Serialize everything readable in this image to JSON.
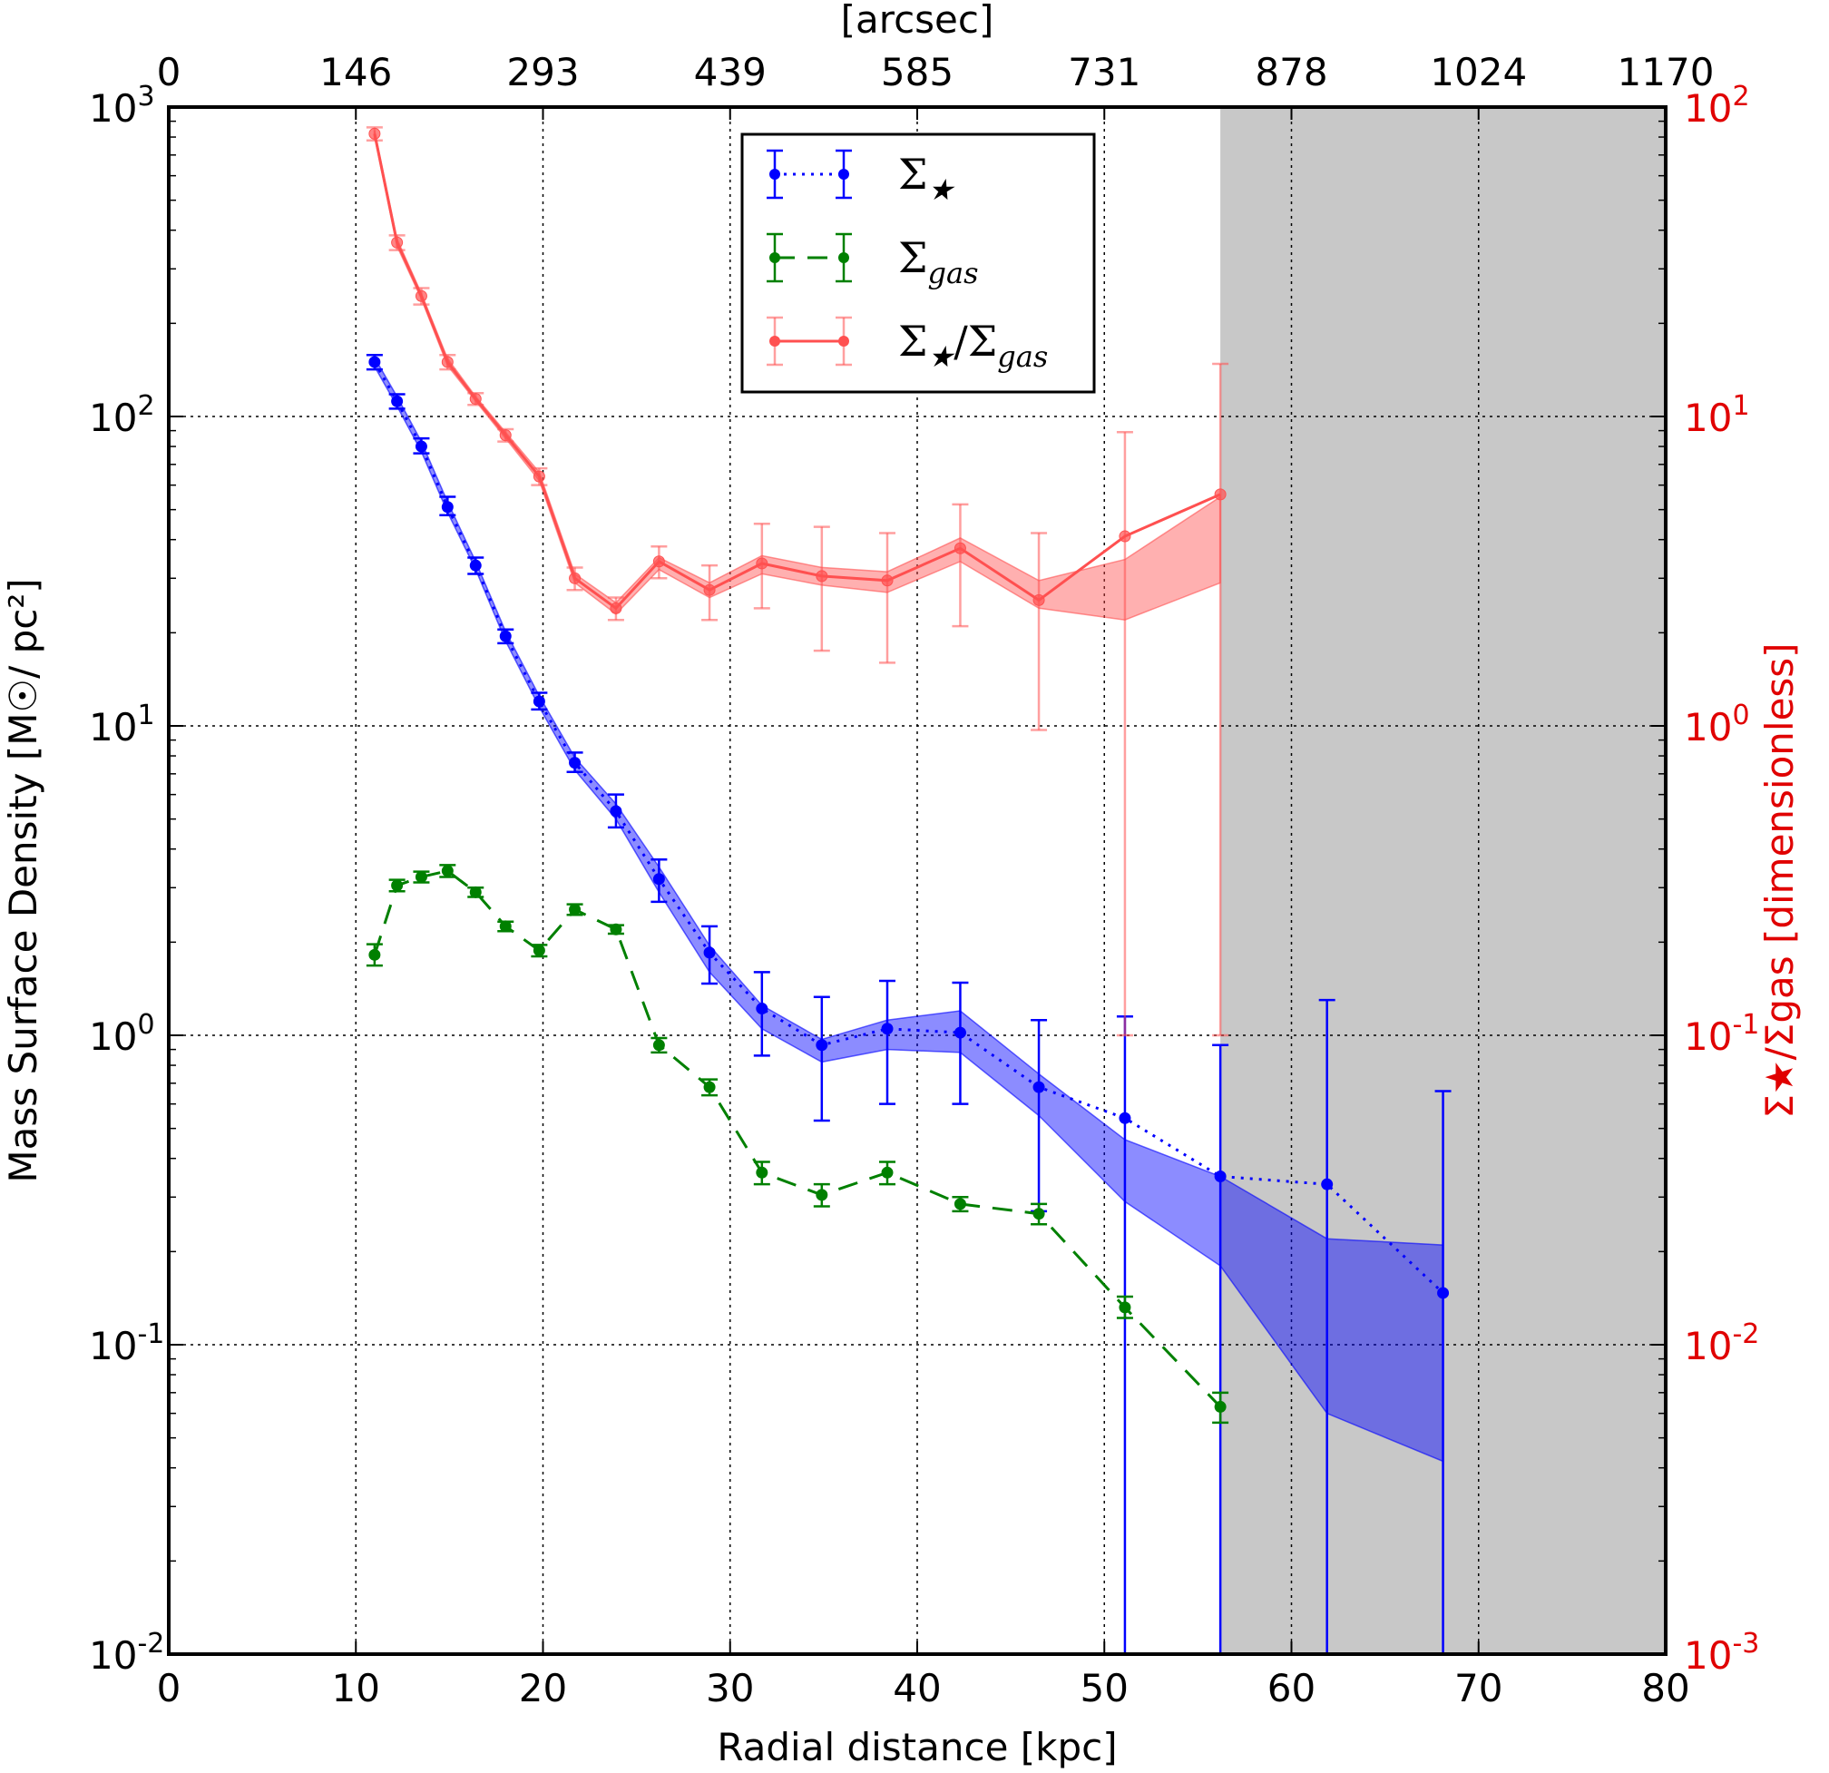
{
  "chart_data": {
    "type": "line",
    "xlabel": "Radial distance [kpc]",
    "ylabel": "Mass Surface Density [M☉/ pc²]",
    "y2label": "Σ★/Σgas [dimensionless]",
    "top_xlabel": "[arcsec]",
    "xlim": [
      0,
      80
    ],
    "ylim": [
      0.01,
      1000
    ],
    "y2lim": [
      0.001,
      100
    ],
    "yscale": "log",
    "y2scale": "log",
    "grid": true,
    "legend_position": "top-center",
    "x_ticks": [
      "0",
      "10",
      "20",
      "30",
      "40",
      "50",
      "60",
      "70",
      "80"
    ],
    "top_x_ticks": [
      "0",
      "146",
      "293",
      "439",
      "585",
      "731",
      "878",
      "1024",
      "1170"
    ],
    "y_ticks": [
      {
        "base": "10",
        "exp": "-2"
      },
      {
        "base": "10",
        "exp": "-1"
      },
      {
        "base": "10",
        "exp": "0"
      },
      {
        "base": "10",
        "exp": "1"
      },
      {
        "base": "10",
        "exp": "2"
      },
      {
        "base": "10",
        "exp": "3"
      }
    ],
    "y2_ticks": [
      {
        "base": "10",
        "exp": "-3"
      },
      {
        "base": "10",
        "exp": "-2"
      },
      {
        "base": "10",
        "exp": "-1"
      },
      {
        "base": "10",
        "exp": "0"
      },
      {
        "base": "10",
        "exp": "1"
      },
      {
        "base": "10",
        "exp": "2"
      }
    ],
    "shaded_region": {
      "x_from": 56.2,
      "x_to": 80,
      "color": "#c8c8c8"
    },
    "series": [
      {
        "name": "Σ★",
        "legend_label": {
          "base": "Σ",
          "sub": "★"
        },
        "axis": "left",
        "color": "#0000ff",
        "linestyle": "dotted",
        "x": [
          11.0,
          12.2,
          13.5,
          14.9,
          16.4,
          18.0,
          19.8,
          21.7,
          23.9,
          26.2,
          28.9,
          31.7,
          34.9,
          38.4,
          42.3,
          46.5,
          51.1,
          56.2,
          61.9,
          68.1
        ],
        "y": [
          150,
          112,
          80,
          51,
          33,
          19.5,
          12,
          7.6,
          5.3,
          3.2,
          1.85,
          1.22,
          0.93,
          1.05,
          1.02,
          0.68,
          0.54,
          0.35,
          0.33,
          0.147
        ],
        "yerr_low": [
          142,
          106,
          76,
          48,
          31,
          18.5,
          11.3,
          7.1,
          4.7,
          2.7,
          1.47,
          0.86,
          0.53,
          0.6,
          0.6,
          0.27,
          0.01,
          0.01,
          0.01,
          0.01
        ],
        "yerr_high": [
          158,
          118,
          85,
          55,
          35,
          20.5,
          12.8,
          8.2,
          6.0,
          3.7,
          2.25,
          1.6,
          1.33,
          1.5,
          1.48,
          1.12,
          1.15,
          0.93,
          1.3,
          0.66
        ],
        "band_low": [
          145,
          108,
          77,
          49,
          32,
          18.8,
          11.5,
          7.2,
          5.0,
          2.9,
          1.6,
          1.05,
          0.82,
          0.9,
          0.88,
          0.55,
          0.29,
          0.18,
          0.06,
          0.042
        ],
        "band_high": [
          155,
          116,
          83,
          53,
          34,
          20.2,
          12.5,
          7.9,
          5.6,
          3.5,
          1.95,
          1.25,
          0.97,
          1.12,
          1.2,
          0.75,
          0.46,
          0.35,
          0.22,
          0.21
        ]
      },
      {
        "name": "Σgas",
        "legend_label": {
          "base": "Σ",
          "sub": "gas"
        },
        "axis": "left",
        "color": "#008000",
        "linestyle": "dashed",
        "x": [
          11.0,
          12.2,
          13.5,
          14.9,
          16.4,
          18.0,
          19.8,
          21.7,
          23.9,
          26.2,
          28.9,
          31.7,
          34.9,
          38.4,
          42.3,
          46.5,
          51.1,
          56.2
        ],
        "y": [
          1.82,
          3.05,
          3.25,
          3.4,
          2.9,
          2.25,
          1.88,
          2.55,
          2.2,
          0.93,
          0.68,
          0.36,
          0.305,
          0.36,
          0.285,
          0.265,
          0.132,
          0.063
        ],
        "yerr_low": [
          1.68,
          2.92,
          3.12,
          3.25,
          2.8,
          2.17,
          1.8,
          2.45,
          2.13,
          0.88,
          0.64,
          0.33,
          0.28,
          0.33,
          0.27,
          0.245,
          0.122,
          0.056
        ],
        "yerr_high": [
          1.97,
          3.18,
          3.38,
          3.55,
          3.0,
          2.33,
          1.96,
          2.65,
          2.27,
          0.98,
          0.72,
          0.39,
          0.33,
          0.39,
          0.3,
          0.285,
          0.143,
          0.07
        ]
      },
      {
        "name": "Σ★/Σgas",
        "legend_label": {
          "base": "Σ",
          "sub": "★",
          "mid": "/Σ",
          "sub2": "gas"
        },
        "axis": "right",
        "color": "#ff5050",
        "linestyle": "solid",
        "x": [
          11.0,
          12.2,
          13.5,
          14.9,
          16.4,
          18.0,
          19.8,
          21.7,
          23.9,
          26.2,
          28.9,
          31.7,
          34.9,
          38.4,
          42.3,
          46.5,
          51.1,
          56.2
        ],
        "y": [
          82,
          36.5,
          24.5,
          15,
          11.4,
          8.7,
          6.4,
          3.0,
          2.4,
          3.4,
          2.75,
          3.35,
          3.05,
          2.95,
          3.75,
          2.55,
          4.1,
          5.6
        ],
        "yerr_low": [
          78,
          34.5,
          23.0,
          14.2,
          10.9,
          8.3,
          6.0,
          2.75,
          2.2,
          3.0,
          2.2,
          2.4,
          1.75,
          1.6,
          2.1,
          0.97,
          0.1,
          0.1
        ],
        "yerr_high": [
          86,
          38.5,
          26.0,
          15.8,
          11.9,
          9.1,
          6.8,
          3.25,
          2.6,
          3.8,
          3.3,
          4.5,
          4.4,
          4.2,
          5.2,
          4.2,
          8.9,
          14.8
        ],
        "band_low": [
          80,
          35.5,
          24.0,
          14.6,
          11.2,
          8.5,
          6.2,
          2.9,
          2.3,
          3.2,
          2.6,
          3.1,
          2.85,
          2.7,
          3.4,
          2.4,
          2.2,
          2.9
        ],
        "band_high": [
          84,
          37.5,
          25.0,
          15.4,
          11.6,
          8.9,
          6.6,
          3.1,
          2.5,
          3.5,
          2.9,
          3.55,
          3.25,
          3.15,
          4.05,
          2.95,
          3.45,
          5.5
        ]
      }
    ]
  }
}
